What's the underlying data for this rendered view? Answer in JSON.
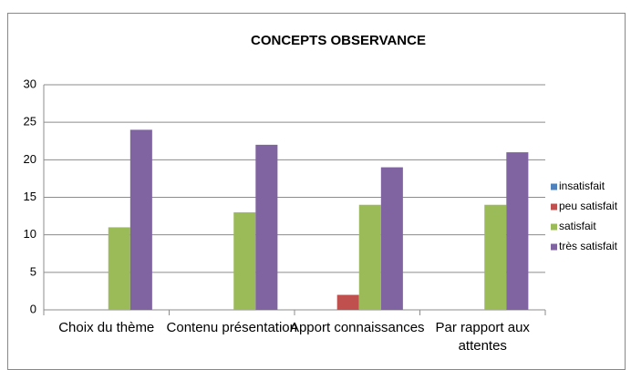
{
  "chart_data": {
    "type": "bar",
    "title": "CONCEPTS OBSERVANCE",
    "categories": [
      "Choix du thème",
      "Contenu présentation",
      "Apport connaissances",
      "Par rapport aux attentes"
    ],
    "series": [
      {
        "name": "insatisfait",
        "color": "#4f81bd",
        "values": [
          0,
          0,
          0,
          0
        ]
      },
      {
        "name": "peu satisfait",
        "color": "#c0504d",
        "values": [
          0,
          0,
          2,
          0
        ]
      },
      {
        "name": "satisfait",
        "color": "#9bbb59",
        "values": [
          11,
          13,
          14,
          14
        ]
      },
      {
        "name": "très satisfait",
        "color": "#8064a2",
        "values": [
          24,
          22,
          19,
          21
        ]
      }
    ],
    "ylim": [
      0,
      30
    ],
    "yticks": [
      0,
      5,
      10,
      15,
      20,
      25,
      30
    ],
    "grid": true,
    "legend": "right"
  }
}
